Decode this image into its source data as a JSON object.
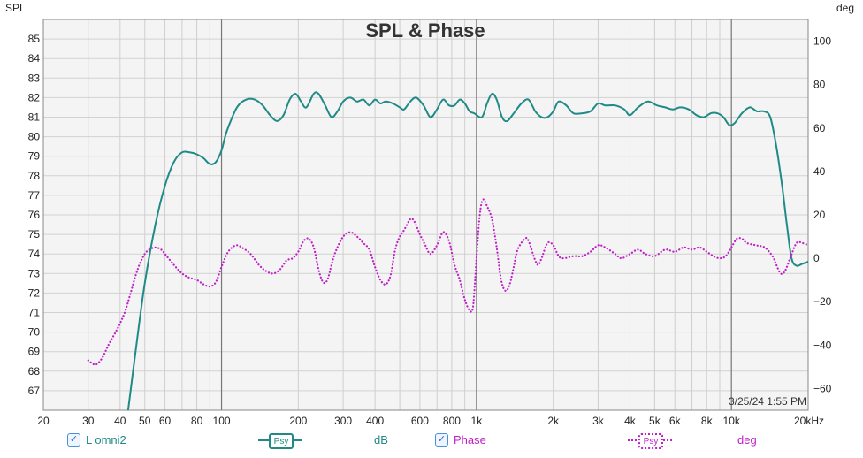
{
  "chart_data": {
    "type": "line",
    "title": "SPL & Phase",
    "left_axis": {
      "label": "SPL",
      "min": 66,
      "max": 86,
      "ticks": [
        67,
        68,
        69,
        70,
        71,
        72,
        73,
        74,
        75,
        76,
        77,
        78,
        79,
        80,
        81,
        82,
        83,
        84,
        85
      ]
    },
    "right_axis": {
      "label": "deg",
      "min": -70,
      "max": 110,
      "ticks": [
        -60,
        -40,
        -20,
        0,
        20,
        40,
        60,
        80,
        100
      ]
    },
    "x_axis": {
      "scale": "log",
      "min": 20,
      "max": 20000,
      "tick_values": [
        20,
        30,
        40,
        50,
        60,
        80,
        100,
        200,
        300,
        400,
        600,
        800,
        1000,
        2000,
        3000,
        4000,
        5000,
        6000,
        8000,
        10000,
        20000
      ],
      "tick_labels": [
        "20",
        "30",
        "40",
        "50",
        "60",
        "80",
        "100",
        "200",
        "300",
        "400",
        "600",
        "800",
        "1k",
        "2k",
        "3k",
        "4k",
        "5k",
        "6k",
        "8k",
        "10k",
        "20kHz"
      ]
    },
    "grid": true,
    "series": [
      {
        "name": "L omni2",
        "axis": "left",
        "color": "#1f8a86",
        "style": "solid",
        "points": [
          [
            43,
            66
          ],
          [
            46,
            69
          ],
          [
            50,
            72.5
          ],
          [
            55,
            75.5
          ],
          [
            60,
            77.5
          ],
          [
            65,
            78.7
          ],
          [
            70,
            79.2
          ],
          [
            75,
            79.2
          ],
          [
            80,
            79.1
          ],
          [
            85,
            78.9
          ],
          [
            90,
            78.6
          ],
          [
            95,
            78.7
          ],
          [
            100,
            79.3
          ],
          [
            105,
            80.3
          ],
          [
            115,
            81.5
          ],
          [
            125,
            81.9
          ],
          [
            135,
            81.9
          ],
          [
            145,
            81.6
          ],
          [
            155,
            81.1
          ],
          [
            165,
            80.8
          ],
          [
            175,
            81.1
          ],
          [
            185,
            81.9
          ],
          [
            195,
            82.2
          ],
          [
            205,
            81.8
          ],
          [
            215,
            81.5
          ],
          [
            230,
            82.2
          ],
          [
            240,
            82.2
          ],
          [
            255,
            81.6
          ],
          [
            270,
            81.0
          ],
          [
            285,
            81.3
          ],
          [
            300,
            81.8
          ],
          [
            320,
            82.0
          ],
          [
            340,
            81.8
          ],
          [
            360,
            81.9
          ],
          [
            380,
            81.6
          ],
          [
            400,
            81.9
          ],
          [
            420,
            81.7
          ],
          [
            440,
            81.8
          ],
          [
            470,
            81.7
          ],
          [
            500,
            81.5
          ],
          [
            520,
            81.4
          ],
          [
            550,
            81.8
          ],
          [
            580,
            82.0
          ],
          [
            620,
            81.6
          ],
          [
            660,
            81.0
          ],
          [
            700,
            81.4
          ],
          [
            740,
            81.9
          ],
          [
            780,
            81.6
          ],
          [
            820,
            81.6
          ],
          [
            860,
            81.9
          ],
          [
            900,
            81.7
          ],
          [
            940,
            81.3
          ],
          [
            980,
            81.2
          ],
          [
            1050,
            81.0
          ],
          [
            1100,
            81.7
          ],
          [
            1150,
            82.2
          ],
          [
            1200,
            81.9
          ],
          [
            1260,
            81.0
          ],
          [
            1320,
            80.8
          ],
          [
            1400,
            81.2
          ],
          [
            1500,
            81.7
          ],
          [
            1600,
            81.9
          ],
          [
            1700,
            81.3
          ],
          [
            1800,
            81.0
          ],
          [
            1900,
            81.0
          ],
          [
            2000,
            81.3
          ],
          [
            2100,
            81.8
          ],
          [
            2250,
            81.6
          ],
          [
            2400,
            81.2
          ],
          [
            2600,
            81.2
          ],
          [
            2800,
            81.3
          ],
          [
            3000,
            81.7
          ],
          [
            3200,
            81.6
          ],
          [
            3500,
            81.6
          ],
          [
            3800,
            81.4
          ],
          [
            4000,
            81.1
          ],
          [
            4300,
            81.5
          ],
          [
            4700,
            81.8
          ],
          [
            5100,
            81.6
          ],
          [
            5500,
            81.5
          ],
          [
            5900,
            81.4
          ],
          [
            6300,
            81.5
          ],
          [
            6800,
            81.4
          ],
          [
            7300,
            81.1
          ],
          [
            7800,
            81.0
          ],
          [
            8300,
            81.2
          ],
          [
            8800,
            81.2
          ],
          [
            9300,
            81.0
          ],
          [
            9800,
            80.6
          ],
          [
            10300,
            80.7
          ],
          [
            11000,
            81.2
          ],
          [
            11800,
            81.5
          ],
          [
            12600,
            81.3
          ],
          [
            13400,
            81.3
          ],
          [
            14200,
            81.0
          ],
          [
            15000,
            79.5
          ],
          [
            15800,
            77.5
          ],
          [
            16500,
            75.5
          ],
          [
            17200,
            73.8
          ],
          [
            18000,
            73.4
          ],
          [
            19000,
            73.5
          ],
          [
            20000,
            73.6
          ]
        ]
      },
      {
        "name": "Phase",
        "axis": "right",
        "color": "#c020c8",
        "style": "dotted",
        "points": [
          [
            30,
            -47
          ],
          [
            32,
            -49
          ],
          [
            34,
            -46
          ],
          [
            36,
            -40
          ],
          [
            38,
            -35
          ],
          [
            40,
            -30
          ],
          [
            42,
            -24
          ],
          [
            44,
            -16
          ],
          [
            46,
            -8
          ],
          [
            48,
            -2
          ],
          [
            50,
            2
          ],
          [
            52,
            4
          ],
          [
            55,
            5
          ],
          [
            58,
            4
          ],
          [
            60,
            2
          ],
          [
            65,
            -3
          ],
          [
            70,
            -7
          ],
          [
            75,
            -9
          ],
          [
            80,
            -10
          ],
          [
            85,
            -12
          ],
          [
            90,
            -13
          ],
          [
            95,
            -11
          ],
          [
            100,
            -4
          ],
          [
            105,
            2
          ],
          [
            110,
            5
          ],
          [
            115,
            6
          ],
          [
            120,
            5
          ],
          [
            130,
            2
          ],
          [
            140,
            -3
          ],
          [
            150,
            -6
          ],
          [
            160,
            -7
          ],
          [
            170,
            -5
          ],
          [
            180,
            -1
          ],
          [
            190,
            0
          ],
          [
            200,
            3
          ],
          [
            210,
            8
          ],
          [
            220,
            9
          ],
          [
            230,
            5
          ],
          [
            240,
            -5
          ],
          [
            250,
            -11
          ],
          [
            260,
            -10
          ],
          [
            270,
            -3
          ],
          [
            280,
            3
          ],
          [
            300,
            10
          ],
          [
            320,
            12
          ],
          [
            340,
            10
          ],
          [
            360,
            7
          ],
          [
            380,
            4
          ],
          [
            400,
            -4
          ],
          [
            420,
            -10
          ],
          [
            440,
            -12
          ],
          [
            460,
            -8
          ],
          [
            480,
            4
          ],
          [
            500,
            10
          ],
          [
            520,
            13
          ],
          [
            550,
            18
          ],
          [
            570,
            17
          ],
          [
            600,
            11
          ],
          [
            630,
            6
          ],
          [
            660,
            2
          ],
          [
            700,
            6
          ],
          [
            740,
            12
          ],
          [
            780,
            8
          ],
          [
            820,
            -3
          ],
          [
            860,
            -10
          ],
          [
            900,
            -19
          ],
          [
            940,
            -24
          ],
          [
            970,
            -22
          ],
          [
            1000,
            0
          ],
          [
            1030,
            20
          ],
          [
            1060,
            27
          ],
          [
            1100,
            24
          ],
          [
            1150,
            18
          ],
          [
            1200,
            5
          ],
          [
            1250,
            -10
          ],
          [
            1300,
            -15
          ],
          [
            1350,
            -12
          ],
          [
            1400,
            -4
          ],
          [
            1450,
            4
          ],
          [
            1550,
            9
          ],
          [
            1600,
            8
          ],
          [
            1700,
            -1
          ],
          [
            1750,
            -3
          ],
          [
            1800,
            0
          ],
          [
            1900,
            7
          ],
          [
            2000,
            6
          ],
          [
            2100,
            1
          ],
          [
            2200,
            0
          ],
          [
            2400,
            1
          ],
          [
            2600,
            1
          ],
          [
            2800,
            3
          ],
          [
            3000,
            6
          ],
          [
            3200,
            5
          ],
          [
            3500,
            2
          ],
          [
            3700,
            0
          ],
          [
            4000,
            2
          ],
          [
            4300,
            4
          ],
          [
            4600,
            2
          ],
          [
            5000,
            1
          ],
          [
            5500,
            4
          ],
          [
            6000,
            3
          ],
          [
            6500,
            5
          ],
          [
            7000,
            4
          ],
          [
            7500,
            5
          ],
          [
            8000,
            3
          ],
          [
            8500,
            1
          ],
          [
            9000,
            0
          ],
          [
            9500,
            1
          ],
          [
            10000,
            5
          ],
          [
            10500,
            9
          ],
          [
            11000,
            9
          ],
          [
            11500,
            7
          ],
          [
            12500,
            6
          ],
          [
            13500,
            5
          ],
          [
            14500,
            1
          ],
          [
            15000,
            -3
          ],
          [
            15600,
            -7
          ],
          [
            16200,
            -6
          ],
          [
            17000,
            0
          ],
          [
            18000,
            7
          ],
          [
            19000,
            7
          ],
          [
            20000,
            6
          ]
        ]
      }
    ],
    "timestamp": "3/25/24 1:55 PM",
    "legend": [
      {
        "label": "L omni2",
        "checked": true,
        "swatch_text": "Psy",
        "unit": "dB"
      },
      {
        "label": "Phase",
        "checked": true,
        "swatch_text": "Psy",
        "unit": "deg"
      }
    ]
  }
}
